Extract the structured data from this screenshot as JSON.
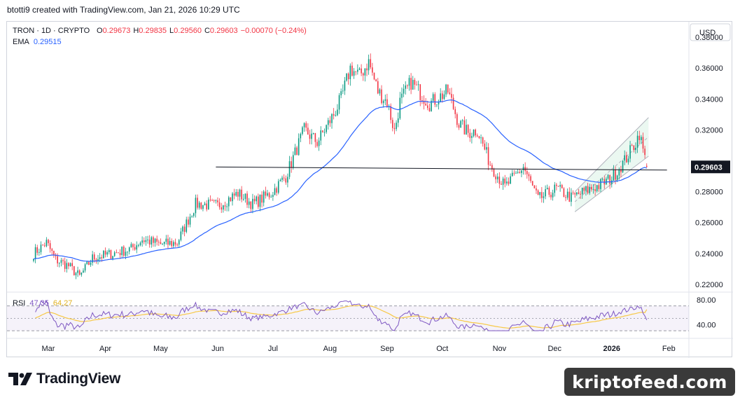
{
  "header": {
    "credit": "btotti9 created with TradingView.com, Jan 21, 2026 10:29 UTC"
  },
  "legend": {
    "symbol": "TRON · 1D · CRYPTO",
    "o_label": "O",
    "o": "0.29673",
    "h_label": "H",
    "h": "0.29835",
    "l_label": "L",
    "l": "0.29560",
    "c_label": "C",
    "c": "0.29603",
    "change": "−0.00070 (−0.24%)",
    "ema_label": "EMA",
    "ema": "0.29515"
  },
  "currency": "USD",
  "price_tag": "0.29603",
  "rsi_legend": {
    "label": "RSI",
    "value": "47.35",
    "signal": "64.27"
  },
  "colors": {
    "up": "#089981",
    "down": "#f23645",
    "ema": "#2962ff",
    "rsi": "#7e57c2",
    "rsi_signal": "#f7c948",
    "trendline": "#131722",
    "channel": "#b2b5be"
  },
  "chart_data": {
    "type": "candlestick",
    "symbol": "TRON",
    "timeframe": "1D",
    "ylim": [
      0.215,
      0.39
    ],
    "price_ticks": [
      "0.38000",
      "0.36000",
      "0.34000",
      "0.32000",
      "0.30000",
      "0.28000",
      "0.26000",
      "0.24000",
      "0.22000"
    ],
    "x_ticks": [
      "Mar",
      "Apr",
      "May",
      "Jun",
      "Jul",
      "Aug",
      "Sep",
      "Oct",
      "Nov",
      "Dec",
      "2026",
      "Feb"
    ],
    "rsi": {
      "ylim": [
        20,
        90
      ],
      "ticks": [
        "80.00",
        "40.00"
      ],
      "bands": [
        70,
        50,
        30
      ],
      "value": 47.35,
      "signal": 64.27
    },
    "anchors": [
      {
        "date": "2025-02-21",
        "close": 0.24
      },
      {
        "date": "2025-02-28",
        "close": 0.247
      },
      {
        "date": "2025-03-05",
        "close": 0.236
      },
      {
        "date": "2025-03-12",
        "close": 0.232
      },
      {
        "date": "2025-03-18",
        "close": 0.225
      },
      {
        "date": "2025-03-25",
        "close": 0.237
      },
      {
        "date": "2025-04-05",
        "close": 0.24
      },
      {
        "date": "2025-04-15",
        "close": 0.243
      },
      {
        "date": "2025-04-21",
        "close": 0.249
      },
      {
        "date": "2025-05-01",
        "close": 0.246
      },
      {
        "date": "2025-05-10",
        "close": 0.247
      },
      {
        "date": "2025-05-20",
        "close": 0.272
      },
      {
        "date": "2025-06-01",
        "close": 0.271
      },
      {
        "date": "2025-06-12",
        "close": 0.279
      },
      {
        "date": "2025-06-20",
        "close": 0.272
      },
      {
        "date": "2025-06-30",
        "close": 0.279
      },
      {
        "date": "2025-07-08",
        "close": 0.29
      },
      {
        "date": "2025-07-12",
        "close": 0.302
      },
      {
        "date": "2025-07-18",
        "close": 0.32
      },
      {
        "date": "2025-07-25",
        "close": 0.312
      },
      {
        "date": "2025-08-03",
        "close": 0.33
      },
      {
        "date": "2025-08-07",
        "close": 0.34
      },
      {
        "date": "2025-08-12",
        "close": 0.36
      },
      {
        "date": "2025-08-17",
        "close": 0.355
      },
      {
        "date": "2025-08-22",
        "close": 0.364
      },
      {
        "date": "2025-08-27",
        "close": 0.345
      },
      {
        "date": "2025-09-01",
        "close": 0.338
      },
      {
        "date": "2025-09-05",
        "close": 0.319
      },
      {
        "date": "2025-09-08",
        "close": 0.338
      },
      {
        "date": "2025-09-14",
        "close": 0.351
      },
      {
        "date": "2025-09-24",
        "close": 0.337
      },
      {
        "date": "2025-10-04",
        "close": 0.345
      },
      {
        "date": "2025-10-10",
        "close": 0.324
      },
      {
        "date": "2025-10-15",
        "close": 0.318
      },
      {
        "date": "2025-10-20",
        "close": 0.32
      },
      {
        "date": "2025-10-27",
        "close": 0.298
      },
      {
        "date": "2025-11-04",
        "close": 0.283
      },
      {
        "date": "2025-11-14",
        "close": 0.296
      },
      {
        "date": "2025-11-22",
        "close": 0.275
      },
      {
        "date": "2025-12-02",
        "close": 0.282
      },
      {
        "date": "2025-12-10",
        "close": 0.276
      },
      {
        "date": "2025-12-17",
        "close": 0.28
      },
      {
        "date": "2025-12-25",
        "close": 0.284
      },
      {
        "date": "2026-01-01",
        "close": 0.289
      },
      {
        "date": "2026-01-08",
        "close": 0.3
      },
      {
        "date": "2026-01-14",
        "close": 0.312
      },
      {
        "date": "2026-01-16",
        "close": 0.318
      },
      {
        "date": "2026-01-20",
        "close": 0.296
      }
    ],
    "last_candle": {
      "open": 0.29673,
      "high": 0.29835,
      "low": 0.2956,
      "close": 0.29603
    },
    "ema_last": 0.29515,
    "support_line": {
      "price": 0.295,
      "start": "2025-05-31",
      "end": "2026-01-31"
    },
    "channel": {
      "start": "2025-12-12",
      "end": "2026-01-21",
      "lower": [
        0.267,
        0.303
      ],
      "upper": [
        0.28,
        0.328
      ]
    }
  }
}
